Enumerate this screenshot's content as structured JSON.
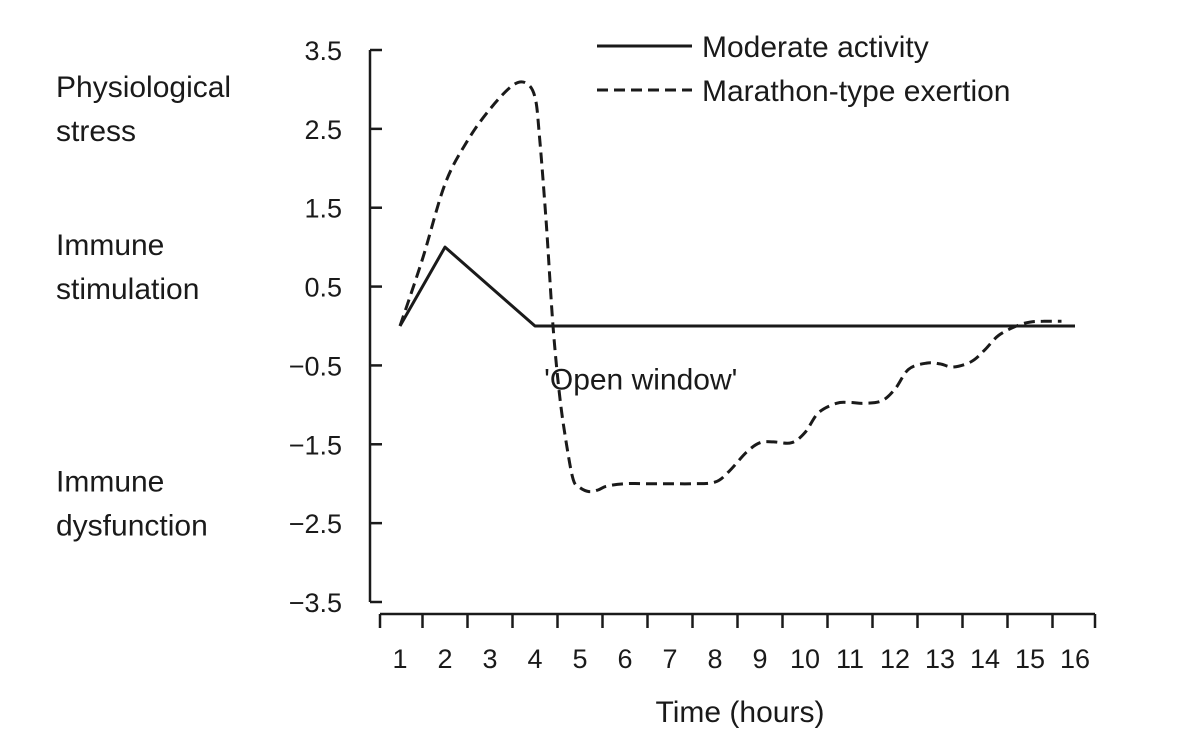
{
  "chart_data": {
    "type": "line",
    "xlabel": "Time (hours)",
    "x_ticks": [
      "1",
      "2",
      "3",
      "4",
      "5",
      "6",
      "7",
      "8",
      "9",
      "10",
      "11",
      "12",
      "13",
      "14",
      "15",
      "16"
    ],
    "y_ticks": [
      "3.5",
      "2.5",
      "1.5",
      "0.5",
      "−0.5",
      "−1.5",
      "−2.5",
      "−3.5"
    ],
    "ylim": [
      -3.5,
      3.5
    ],
    "xlim": [
      1,
      16
    ],
    "grid": false,
    "legend_position": "top-right",
    "side_labels": [
      {
        "text_lines": [
          "Physiological",
          "stress"
        ],
        "y": 2.75
      },
      {
        "text_lines": [
          "Immune",
          "stimulation"
        ],
        "y": 0.75
      },
      {
        "text_lines": [
          "Immune",
          "dysfunction"
        ],
        "y": -2.25
      }
    ],
    "annotations": [
      {
        "text": "'Open window'",
        "x": 6.35,
        "y": -0.6
      }
    ],
    "series": [
      {
        "name": "Moderate activity",
        "style": "solid",
        "color": "#1a1a1a",
        "x": [
          1,
          2,
          4,
          16
        ],
        "y": [
          0,
          1,
          0,
          0
        ]
      },
      {
        "name": "Marathon-type exertion",
        "style": "dashed",
        "color": "#1a1a1a",
        "x": [
          1,
          1.5,
          2,
          2.5,
          3,
          3.5,
          3.8,
          4.0,
          4.1,
          4.25,
          4.4,
          4.55,
          4.7,
          4.85,
          5.0,
          5.2,
          5.4,
          5.6,
          6.0,
          6.5,
          7.0,
          7.5,
          8.0,
          8.3,
          8.7,
          9.0,
          9.3,
          9.7,
          10.0,
          10.3,
          10.7,
          11.0,
          11.3,
          11.7,
          12.0,
          12.3,
          12.7,
          13.0,
          13.3,
          13.7,
          14.0,
          14.3,
          14.7,
          15.0,
          15.3,
          15.7
        ],
        "y": [
          0,
          0.85,
          1.8,
          2.35,
          2.75,
          3.05,
          3.08,
          2.9,
          2.4,
          1.3,
          0.0,
          -0.9,
          -1.5,
          -1.95,
          -2.05,
          -2.1,
          -2.08,
          -2.03,
          -2.0,
          -2.0,
          -2.0,
          -2.0,
          -1.98,
          -1.85,
          -1.6,
          -1.48,
          -1.47,
          -1.48,
          -1.35,
          -1.1,
          -0.98,
          -0.97,
          -0.98,
          -0.95,
          -0.8,
          -0.55,
          -0.47,
          -0.48,
          -0.52,
          -0.45,
          -0.3,
          -0.12,
          0.0,
          0.05,
          0.06,
          0.06
        ]
      }
    ]
  }
}
